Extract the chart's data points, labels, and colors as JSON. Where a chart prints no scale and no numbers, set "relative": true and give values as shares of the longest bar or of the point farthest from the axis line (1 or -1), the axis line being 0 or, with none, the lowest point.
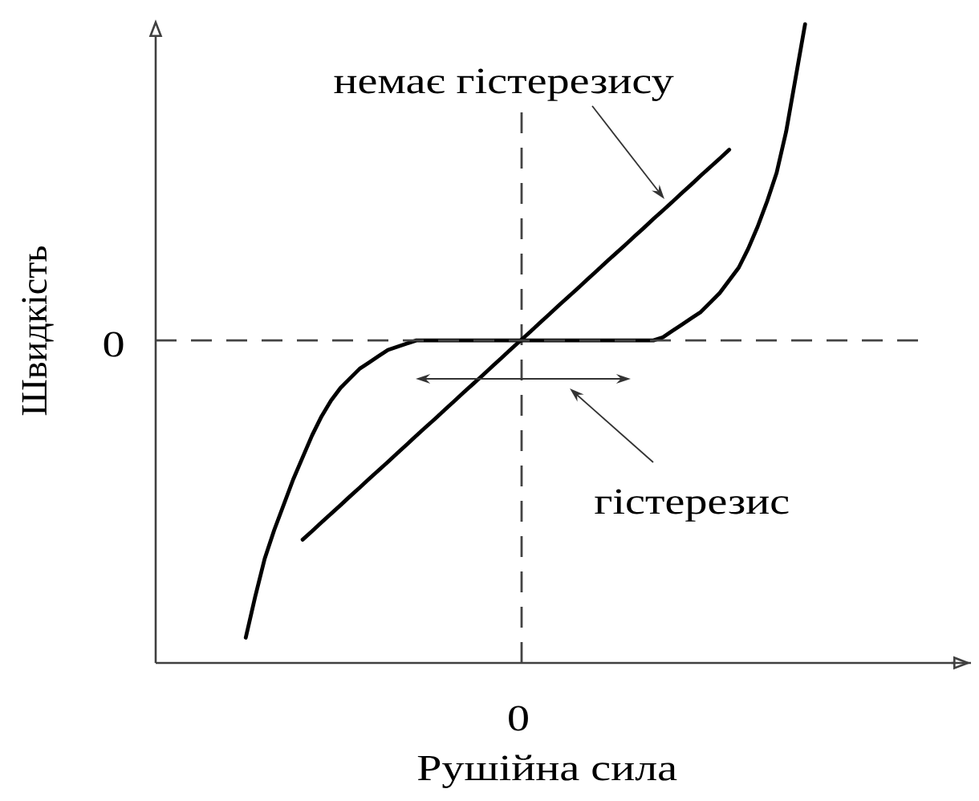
{
  "chart_data": {
    "type": "line",
    "relative": true,
    "xlabel": "Рушійна сила",
    "ylabel": "Швидкість",
    "marker": "none",
    "line_style": "solid",
    "categories": [
      null,
      null,
      null,
      null,
      null,
      null,
      null,
      null,
      null,
      null,
      null,
      null,
      null,
      null,
      null,
      null,
      null,
      null,
      null,
      null,
      null,
      null,
      null,
      null,
      null,
      null,
      null,
      null,
      null,
      null,
      null,
      null,
      null,
      null,
      null,
      null,
      null,
      null,
      null,
      null,
      null,
      null,
      null,
      null,
      null,
      null,
      null,
      null,
      null,
      null,
      null,
      null,
      null,
      null,
      null,
      null,
      null,
      null,
      null,
      null,
      null,
      null,
      null,
      null,
      null,
      null,
      null,
      null,
      null,
      null,
      null,
      null,
      null,
      null,
      null,
      null,
      null,
      null,
      null,
      null,
      null,
      null,
      null,
      null,
      null,
      null
    ],
    "series": [
      {
        "color": "#000000",
        "values": [
          null,
          null,
          null,
          null,
          null,
          null,
          null,
          null,
          null,
          null,
          null,
          null,
          null,
          null,
          null,
          -0.63,
          -0.603,
          -0.575,
          -0.548,
          -0.521,
          -0.493,
          -0.466,
          -0.438,
          -0.411,
          -0.384,
          -0.356,
          -0.329,
          -0.301,
          -0.274,
          -0.247,
          -0.219,
          -0.192,
          -0.164,
          -0.137,
          -0.11,
          -0.082,
          -0.055,
          -0.027,
          0,
          0.027,
          0.055,
          0.082,
          0.11,
          0.137,
          0.164,
          0.192,
          0.219,
          0.247,
          0.274,
          0.301,
          0.329,
          0.356,
          0.384,
          0.411,
          0.438,
          0.466,
          0.493,
          0.521,
          0.548,
          0.575,
          0.603,
          null,
          null,
          null,
          null,
          null,
          null,
          null,
          null,
          null,
          null,
          null,
          null,
          null,
          null,
          null,
          null,
          null,
          null,
          null,
          null,
          null,
          null,
          null,
          null,
          null
        ]
      },
      {
        "color": "#000000",
        "values": [
          null,
          null,
          null,
          null,
          null,
          null,
          null,
          null,
          null,
          -0.94,
          -0.81,
          -0.69,
          -0.6,
          -0.52,
          -0.44,
          -0.37,
          -0.3,
          -0.24,
          -0.19,
          -0.15,
          -0.12,
          -0.09,
          -0.07,
          -0.05,
          -0.03,
          -0.02,
          -0.01,
          0,
          0,
          0,
          0,
          0,
          0,
          0,
          0,
          0,
          0,
          0,
          0,
          0,
          0,
          0,
          0,
          0,
          0,
          0,
          0,
          0,
          0,
          0,
          0,
          0,
          0,
          0.01,
          0.03,
          0.05,
          0.07,
          0.09,
          0.12,
          0.15,
          0.19,
          0.23,
          0.29,
          0.36,
          0.44,
          0.53,
          0.66,
          0.83,
          1.0,
          null,
          null,
          null,
          null,
          null,
          null,
          null,
          null,
          null,
          null,
          null,
          null,
          null,
          null,
          null,
          null,
          null
        ]
      }
    ],
    "ref_lines": [
      {
        "axis": "y",
        "value": 0,
        "label": "0",
        "color": "#444444",
        "line_style": "dashed"
      }
    ],
    "annotations": [
      "немає гістерезису",
      "гістерезис",
      "0"
    ]
  }
}
